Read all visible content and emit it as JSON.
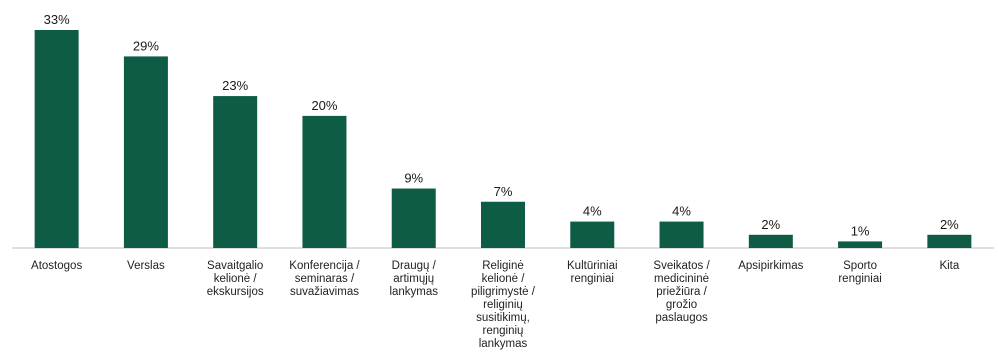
{
  "chart_data": {
    "type": "bar",
    "title": "",
    "xlabel": "",
    "ylabel": "",
    "ylim": [
      0,
      33
    ],
    "grid": false,
    "legend": "none",
    "bar_color": "#0f5c46",
    "axis_color": "#bfbfbf",
    "categories": [
      [
        "Atostogos"
      ],
      [
        "Verslas"
      ],
      [
        "Savaitgalio",
        "kelionė /",
        "ekskursijos"
      ],
      [
        "Konferencija /",
        "seminaras /",
        "suvažiavimas"
      ],
      [
        "Draugų /",
        "artimųjų",
        "lankymas"
      ],
      [
        "Religinė",
        "kelionė /",
        "piligrimystė /",
        "religinių",
        "susitikimų,",
        "renginių",
        "lankymas"
      ],
      [
        "Kultūriniai",
        "renginiai"
      ],
      [
        "Sveikatos /",
        "medicininė",
        "priežiūra /",
        "grožio",
        "paslaugos"
      ],
      [
        "Apsipirkimas"
      ],
      [
        "Sporto",
        "renginiai"
      ],
      [
        "Kita"
      ]
    ],
    "values": [
      33,
      29,
      23,
      20,
      9,
      7,
      4,
      4,
      2,
      1,
      2
    ],
    "value_labels": [
      "33%",
      "29%",
      "23%",
      "20%",
      "9%",
      "7%",
      "4%",
      "4%",
      "2%",
      "1%",
      "2%"
    ]
  }
}
